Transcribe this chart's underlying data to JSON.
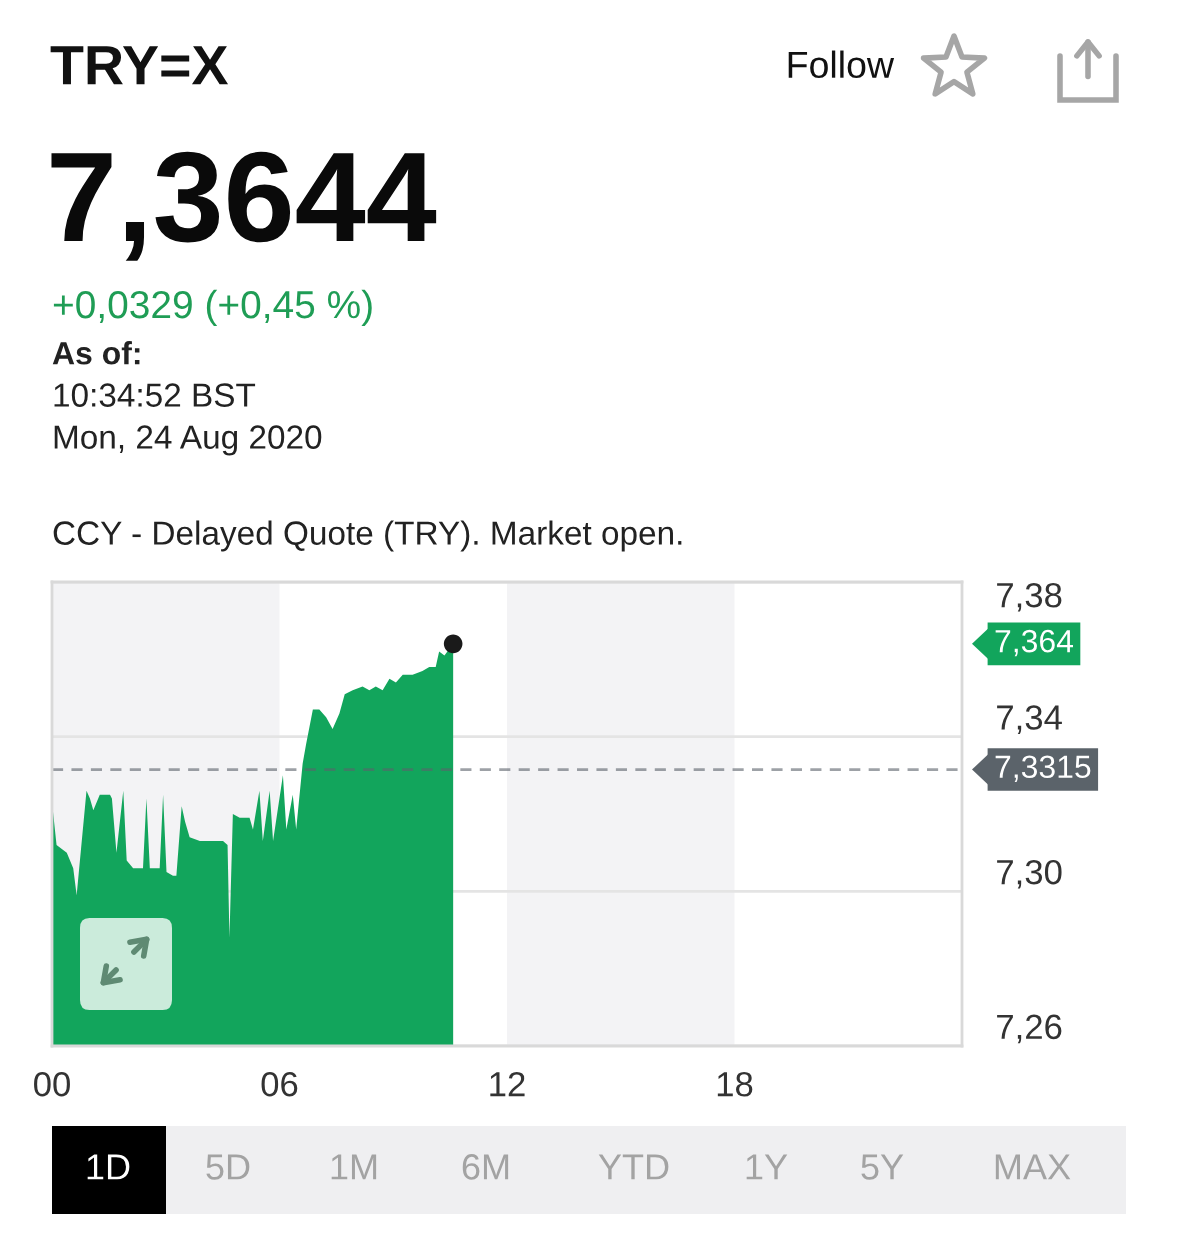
{
  "chart_data": {
    "type": "area",
    "title": "TRY=X",
    "subtitle": "7,3644",
    "annotations": [
      "Follow",
      "+0,0329 (+0,45 %)",
      "As of:",
      "10:34:52 BST",
      "Mon, 24 Aug 2020",
      "CCY - Delayed Quote (TRY). Market open.",
      "1D",
      "5D",
      "1M",
      "6M",
      "YTD",
      "1Y",
      "5Y",
      "MAX",
      "7,364"
    ],
    "series": [
      {
        "color": "#12a55c",
        "x": [
          0,
          0.12,
          0.39,
          0.56,
          0.65,
          0.91,
          1.0,
          1.09,
          1.26,
          1.53,
          1.58,
          1.7,
          1.88,
          1.97,
          2.14,
          2.4,
          2.49,
          2.58,
          2.84,
          2.93,
          3.02,
          3.19,
          3.28,
          3.42,
          3.51,
          3.63,
          3.9,
          4.51,
          4.63,
          4.68,
          4.77,
          4.95,
          5.21,
          5.3,
          5.47,
          5.56,
          5.74,
          5.83,
          6.09,
          6.18,
          6.35,
          6.44,
          6.61,
          6.7,
          6.88,
          7.05,
          7.23,
          7.4,
          7.58,
          7.72,
          7.93,
          8.19,
          8.37,
          8.54,
          8.72,
          8.9,
          9.07,
          9.25,
          9.51,
          9.77,
          9.95,
          10.12,
          10.21,
          10.35,
          10.58
        ],
        "values": [
          7.323,
          7.312,
          7.31,
          7.306,
          7.299,
          7.326,
          7.324,
          7.321,
          7.325,
          7.325,
          7.324,
          7.31,
          7.326,
          7.308,
          7.306,
          7.306,
          7.324,
          7.306,
          7.306,
          7.325,
          7.305,
          7.304,
          7.304,
          7.322,
          7.318,
          7.314,
          7.313,
          7.313,
          7.312,
          7.288,
          7.32,
          7.319,
          7.319,
          7.316,
          7.326,
          7.313,
          7.326,
          7.313,
          7.33,
          7.316,
          7.325,
          7.316,
          7.333,
          7.338,
          7.347,
          7.347,
          7.345,
          7.342,
          7.346,
          7.351,
          7.352,
          7.353,
          7.352,
          7.353,
          7.352,
          7.355,
          7.354,
          7.356,
          7.356,
          7.357,
          7.358,
          7.358,
          7.362,
          7.361,
          7.364
        ]
      },
      {
        "type": "scatter",
        "color": "#1a1a1a",
        "x": [
          10.58
        ],
        "values": [
          7.364
        ]
      }
    ],
    "xlim": [
      0,
      24
    ],
    "xticks": [
      {
        "value": 0,
        "label": "00"
      },
      {
        "value": 6,
        "label": "06"
      },
      {
        "value": 12,
        "label": "12"
      },
      {
        "value": 18,
        "label": "18"
      }
    ],
    "ylim": [
      7.26,
      7.38
    ],
    "yticks": [
      {
        "value": 7.26,
        "label": "7,26"
      },
      {
        "value": 7.3,
        "label": "7,30"
      },
      {
        "value": 7.34,
        "label": "7,34"
      },
      {
        "value": 7.38,
        "label": "7,38"
      }
    ],
    "ref_lines": [
      {
        "axis": "y",
        "value": 7.3315,
        "label": "7,3315",
        "color": "#5b636a",
        "line_style": "dashed"
      }
    ],
    "bands": [
      {
        "axis": "x",
        "from": 0,
        "to": 6,
        "color": "#f3f3f5"
      },
      {
        "axis": "x",
        "from": 12,
        "to": 18,
        "color": "#f3f3f5"
      }
    ],
    "grid": "y"
  }
}
